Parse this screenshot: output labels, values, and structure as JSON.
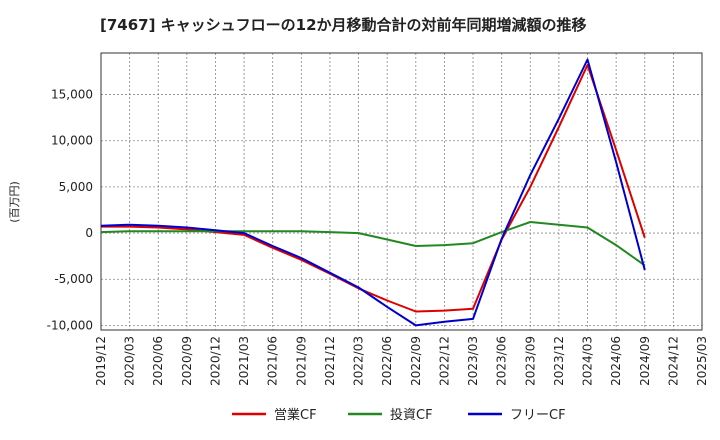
{
  "chart_data": {
    "type": "line",
    "title": "[7467]  キャッシュフローの12か月移動合計の対前年同期増減額の推移",
    "xlabel": "",
    "ylabel": "(百万円)",
    "ylim": [
      -10500,
      19500
    ],
    "yticks": [
      15000,
      10000,
      5000,
      0,
      -5000,
      -10000
    ],
    "ytick_labels": [
      "15,000",
      "10,000",
      "5,000",
      "0",
      "-5,000",
      "-10,000"
    ],
    "x_categories": [
      "2019/12",
      "2020/03",
      "2020/06",
      "2020/09",
      "2020/12",
      "2021/03",
      "2021/06",
      "2021/09",
      "2021/12",
      "2022/03",
      "2022/06",
      "2022/09",
      "2022/12",
      "2023/03",
      "2023/06",
      "2023/09",
      "2023/12",
      "2024/03",
      "2024/06",
      "2024/09",
      "2024/12",
      "2025/03"
    ],
    "grid": true,
    "legend_position": "bottom",
    "series": [
      {
        "name": "営業CF",
        "color": "#dd0000",
        "x_index": [
          0,
          1,
          2,
          3,
          4,
          5,
          6,
          7,
          8,
          9,
          10,
          11,
          12,
          13,
          14,
          15,
          16,
          17,
          18,
          19
        ],
        "values": [
          700,
          700,
          600,
          400,
          100,
          -200,
          -1600,
          -2900,
          -4400,
          -6000,
          -7300,
          -8500,
          -8400,
          -8200,
          -700,
          5000,
          11500,
          18200,
          9000,
          -500
        ]
      },
      {
        "name": "投資CF",
        "color": "#228822",
        "x_index": [
          0,
          1,
          2,
          3,
          4,
          5,
          6,
          7,
          8,
          9,
          10,
          11,
          12,
          13,
          14,
          15,
          16,
          17,
          18,
          19
        ],
        "values": [
          100,
          200,
          200,
          200,
          200,
          200,
          200,
          200,
          100,
          0,
          -700,
          -1400,
          -1300,
          -1100,
          100,
          1200,
          900,
          600,
          -1300,
          -3500
        ]
      },
      {
        "name": "フリーCF",
        "color": "#0000cc",
        "x_index": [
          0,
          1,
          2,
          3,
          4,
          5,
          6,
          7,
          8,
          9,
          10,
          11,
          12,
          13,
          14,
          15,
          16,
          17,
          18,
          19
        ],
        "values": [
          800,
          900,
          800,
          600,
          300,
          0,
          -1400,
          -2700,
          -4300,
          -5900,
          -8000,
          -10000,
          -9600,
          -9300,
          -600,
          6300,
          12400,
          18800,
          7700,
          -4000
        ]
      }
    ]
  }
}
